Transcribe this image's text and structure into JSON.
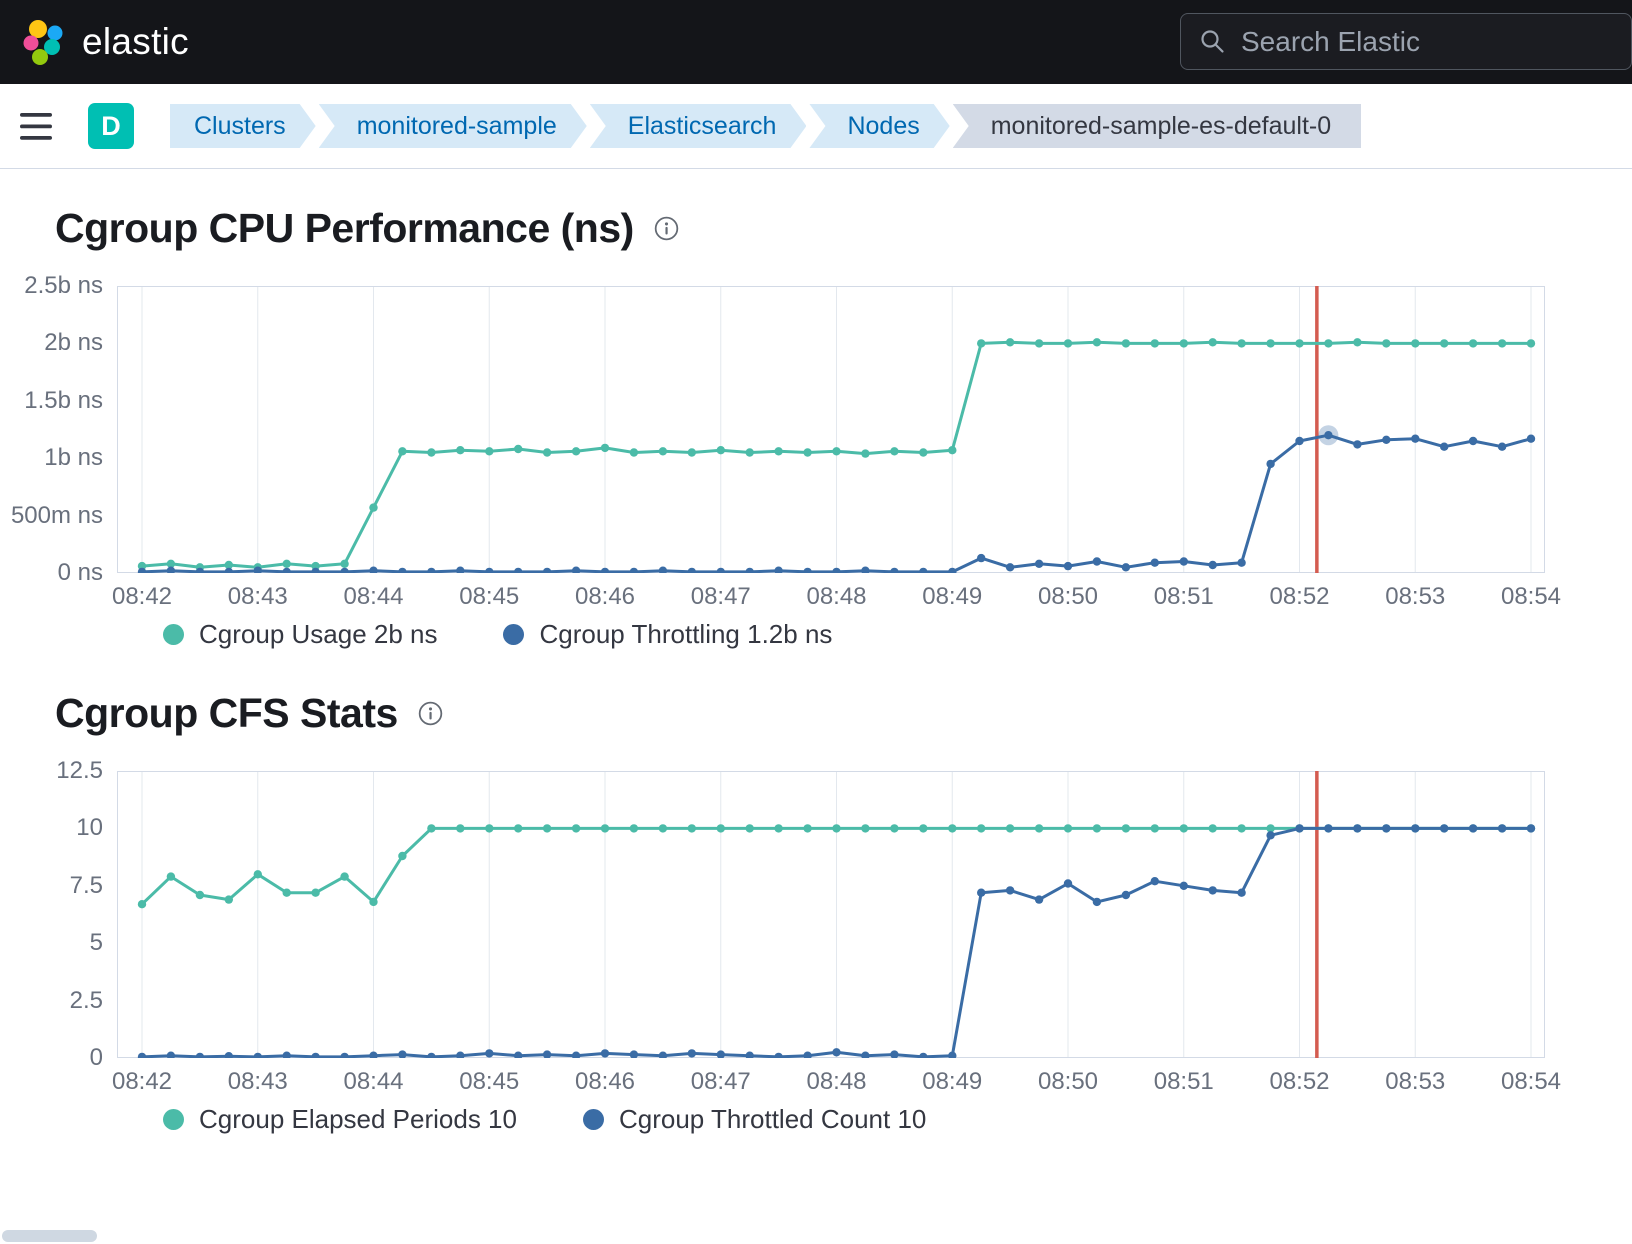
{
  "header": {
    "brand": "elastic",
    "search_placeholder": "Search Elastic"
  },
  "nav": {
    "deployment_badge": "D",
    "breadcrumbs": [
      {
        "label": "Clusters"
      },
      {
        "label": "monitored-sample"
      },
      {
        "label": "Elasticsearch"
      },
      {
        "label": "Nodes"
      },
      {
        "label": "monitored-sample-es-default-0"
      }
    ]
  },
  "chart_data": [
    {
      "type": "line",
      "title": "Cgroup CPU Performance (ns)",
      "x_ticks": [
        "08:42",
        "08:43",
        "08:44",
        "08:45",
        "08:46",
        "08:47",
        "08:48",
        "08:49",
        "08:50",
        "08:51",
        "08:52",
        "08:53",
        "08:54"
      ],
      "x_minutes_span": 12,
      "point_interval_seconds": 15,
      "ylim": [
        0,
        2.5
      ],
      "y_ticks": [
        {
          "v": 0,
          "label": "0 ns"
        },
        {
          "v": 0.5,
          "label": "500m ns"
        },
        {
          "v": 1,
          "label": "1b ns"
        },
        {
          "v": 1.5,
          "label": "1.5b ns"
        },
        {
          "v": 2,
          "label": "2b ns"
        },
        {
          "v": 2.5,
          "label": "2.5b ns"
        }
      ],
      "grid_color": "#e3e8ee",
      "annotation": {
        "x_minutes": 10.15,
        "color": "#d45c50"
      },
      "highlight": {
        "series": 1,
        "index": 41
      },
      "legend_position": "bottom",
      "series": [
        {
          "name": "Cgroup Usage",
          "legend_label": "Cgroup Usage 2b ns",
          "color": "#4bbba8",
          "values": [
            0.06,
            0.08,
            0.05,
            0.07,
            0.05,
            0.08,
            0.06,
            0.08,
            0.57,
            1.06,
            1.05,
            1.07,
            1.06,
            1.08,
            1.05,
            1.06,
            1.09,
            1.05,
            1.06,
            1.05,
            1.07,
            1.05,
            1.06,
            1.05,
            1.06,
            1.04,
            1.06,
            1.05,
            1.07,
            2,
            2.01,
            2,
            2,
            2.01,
            2,
            2,
            2,
            2.01,
            2,
            2,
            2,
            2,
            2.01,
            2,
            2,
            2,
            2,
            2,
            2
          ]
        },
        {
          "name": "Cgroup Throttling",
          "legend_label": "Cgroup Throttling 1.2b ns",
          "color": "#3a6ca5",
          "values": [
            0.01,
            0.02,
            0.01,
            0.01,
            0.02,
            0.01,
            0.01,
            0.01,
            0.02,
            0.01,
            0.01,
            0.02,
            0.01,
            0.01,
            0.01,
            0.02,
            0.01,
            0.01,
            0.02,
            0.01,
            0.01,
            0.01,
            0.02,
            0.01,
            0.01,
            0.02,
            0.01,
            0.01,
            0.01,
            0.13,
            0.05,
            0.08,
            0.06,
            0.1,
            0.05,
            0.09,
            0.1,
            0.07,
            0.09,
            0.95,
            1.15,
            1.2,
            1.12,
            1.16,
            1.17,
            1.1,
            1.15,
            1.1,
            1.17
          ]
        }
      ]
    },
    {
      "type": "line",
      "title": "Cgroup CFS Stats",
      "x_ticks": [
        "08:42",
        "08:43",
        "08:44",
        "08:45",
        "08:46",
        "08:47",
        "08:48",
        "08:49",
        "08:50",
        "08:51",
        "08:52",
        "08:53",
        "08:54"
      ],
      "x_minutes_span": 12,
      "point_interval_seconds": 15,
      "ylim": [
        0,
        12.5
      ],
      "y_ticks": [
        {
          "v": 0,
          "label": "0"
        },
        {
          "v": 2.5,
          "label": "2.5"
        },
        {
          "v": 5,
          "label": "5"
        },
        {
          "v": 7.5,
          "label": "7.5"
        },
        {
          "v": 10,
          "label": "10"
        },
        {
          "v": 12.5,
          "label": "12.5"
        }
      ],
      "grid_color": "#e3e8ee",
      "annotation": {
        "x_minutes": 10.15,
        "color": "#d45c50"
      },
      "legend_position": "bottom",
      "series": [
        {
          "name": "Cgroup Elapsed Periods",
          "legend_label": "Cgroup Elapsed Periods 10",
          "color": "#4bbba8",
          "values": [
            6.7,
            7.9,
            7.1,
            6.9,
            8,
            7.2,
            7.2,
            7.9,
            6.8,
            8.8,
            10,
            10,
            10,
            10,
            10,
            10,
            10,
            10,
            10,
            10,
            10,
            10,
            10,
            10,
            10,
            10,
            10,
            10,
            10,
            10,
            10,
            10,
            10,
            10,
            10,
            10,
            10,
            10,
            10,
            10,
            10,
            10,
            10,
            10,
            10,
            10,
            10,
            10,
            10
          ]
        },
        {
          "name": "Cgroup Throttled Count",
          "legend_label": "Cgroup Throttled Count 10",
          "color": "#3a6ca5",
          "values": [
            0.05,
            0.1,
            0.05,
            0.08,
            0.05,
            0.1,
            0.05,
            0.05,
            0.1,
            0.15,
            0.05,
            0.1,
            0.2,
            0.1,
            0.15,
            0.1,
            0.2,
            0.15,
            0.1,
            0.2,
            0.15,
            0.1,
            0.05,
            0.1,
            0.25,
            0.1,
            0.15,
            0.05,
            0.1,
            7.2,
            7.3,
            6.9,
            7.6,
            6.8,
            7.1,
            7.7,
            7.5,
            7.3,
            7.2,
            9.7,
            10,
            10,
            10,
            10,
            10,
            10,
            10,
            10,
            10
          ]
        }
      ]
    }
  ]
}
